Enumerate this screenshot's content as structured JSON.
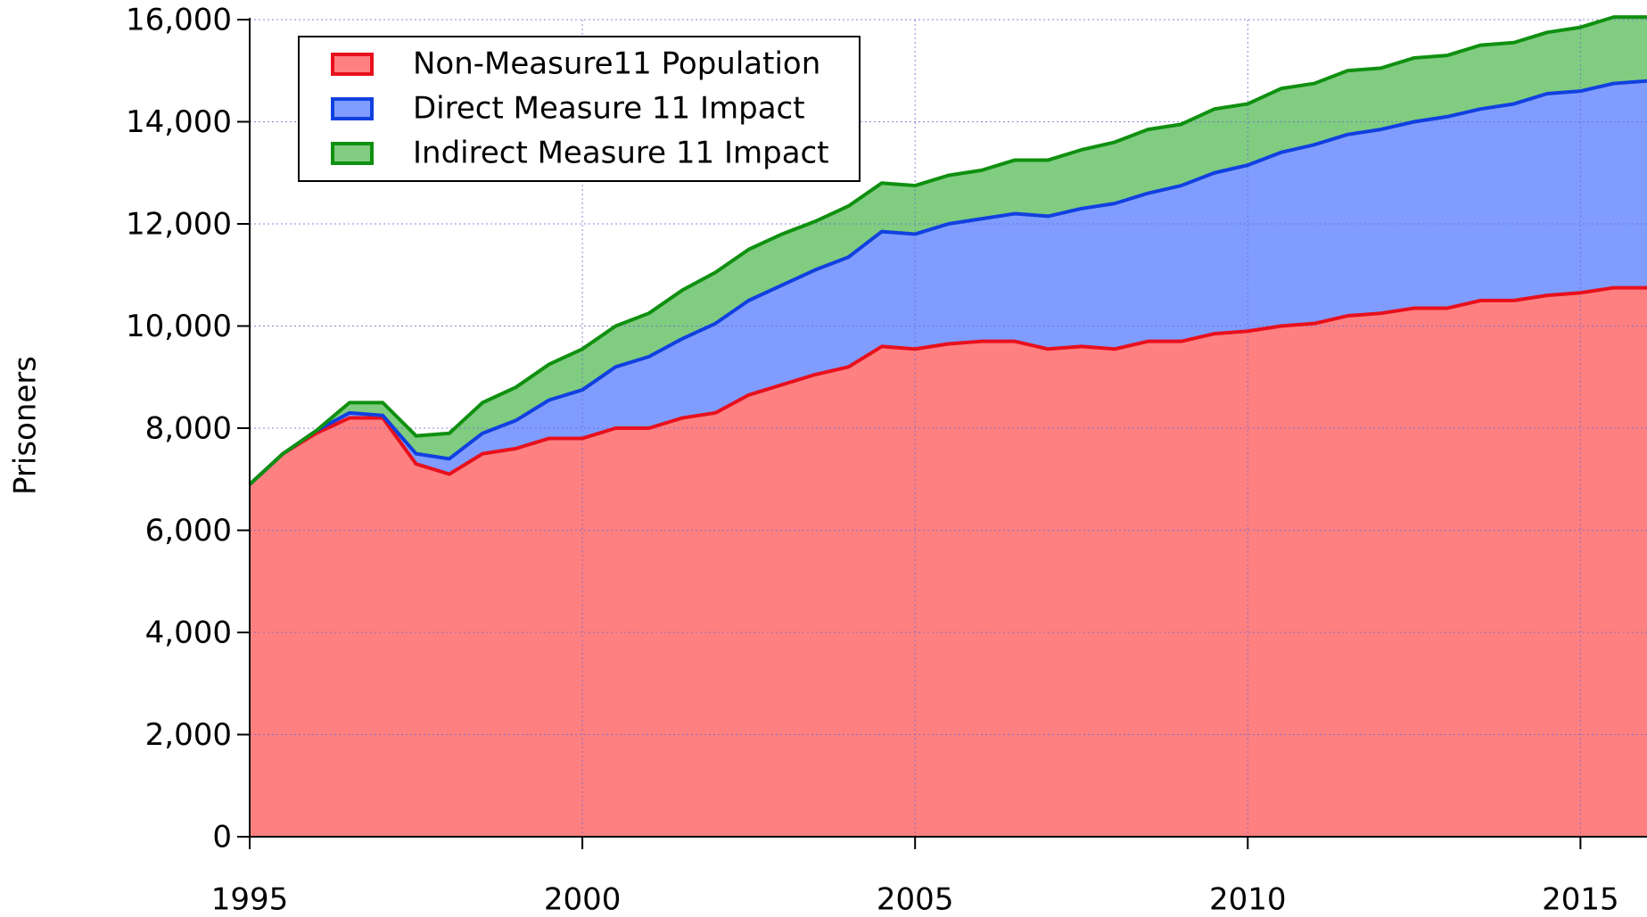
{
  "chart_data": {
    "type": "stacked_area",
    "y_label": "Prisoners",
    "x": [
      1995,
      1995.5,
      1996,
      1996.5,
      1997,
      1997.5,
      1998,
      1998.5,
      1999,
      1999.5,
      2000,
      2000.5,
      2001,
      2001.5,
      2002,
      2002.5,
      2003,
      2003.5,
      2004,
      2004.5,
      2005,
      2005.5,
      2006,
      2006.5,
      2007,
      2007.5,
      2008,
      2008.5,
      2009,
      2009.5,
      2010,
      2010.5,
      2011,
      2011.5,
      2012,
      2012.5,
      2013,
      2013.5,
      2014,
      2014.5,
      2015,
      2015.5,
      2016
    ],
    "series": [
      {
        "name": "Non-Measure11 Population",
        "color": "#ff8080",
        "line_color": "#e8101c",
        "values": [
          6900,
          7500,
          7900,
          8200,
          8200,
          7300,
          7100,
          7500,
          7600,
          7800,
          7800,
          8000,
          8000,
          8200,
          8300,
          8650,
          8850,
          9050,
          9200,
          9600,
          9550,
          9650,
          9700,
          9700,
          9550,
          9600,
          9550,
          9700,
          9700,
          9850,
          9900,
          10000,
          10050,
          10200,
          10250,
          10350,
          10350,
          10500,
          10500,
          10600,
          10650,
          10750,
          10750
        ]
      },
      {
        "name": "Direct Measure 11 Impact",
        "color": "#809cff",
        "line_color": "#1040e0",
        "values": [
          0,
          0,
          50,
          100,
          50,
          200,
          300,
          400,
          550,
          750,
          950,
          1200,
          1400,
          1550,
          1750,
          1850,
          1950,
          2050,
          2150,
          2250,
          2250,
          2350,
          2400,
          2500,
          2600,
          2700,
          2850,
          2900,
          3050,
          3150,
          3250,
          3400,
          3500,
          3550,
          3600,
          3650,
          3750,
          3750,
          3850,
          3950,
          3950,
          4000,
          4050
        ]
      },
      {
        "name": "Indirect Measure 11 Impact",
        "color": "#80cc80",
        "line_color": "#109010",
        "values": [
          0,
          0,
          0,
          200,
          250,
          350,
          500,
          600,
          650,
          700,
          800,
          800,
          850,
          950,
          1000,
          1000,
          1000,
          950,
          1000,
          950,
          950,
          950,
          950,
          1050,
          1100,
          1150,
          1200,
          1250,
          1200,
          1250,
          1200,
          1250,
          1200,
          1250,
          1200,
          1250,
          1200,
          1250,
          1200,
          1200,
          1250,
          1300,
          1250
        ]
      }
    ],
    "xlim": [
      1995,
      2016
    ],
    "xticks": [
      1995,
      2000,
      2005,
      2010,
      2015
    ],
    "ylim": [
      0,
      16000
    ],
    "yticks": [
      0,
      {
        "value": 2000,
        "label": "2,000"
      },
      {
        "value": 4000,
        "label": "4,000"
      },
      {
        "value": 6000,
        "label": "6,000"
      },
      {
        "value": 8000,
        "label": "8,000"
      },
      {
        "value": 10000,
        "label": "10,000"
      },
      {
        "value": 12000,
        "label": "12,000"
      },
      {
        "value": 14000,
        "label": "14,000"
      },
      {
        "value": 16000,
        "label": "16,000"
      }
    ],
    "grid": true,
    "legend": "upper left"
  }
}
